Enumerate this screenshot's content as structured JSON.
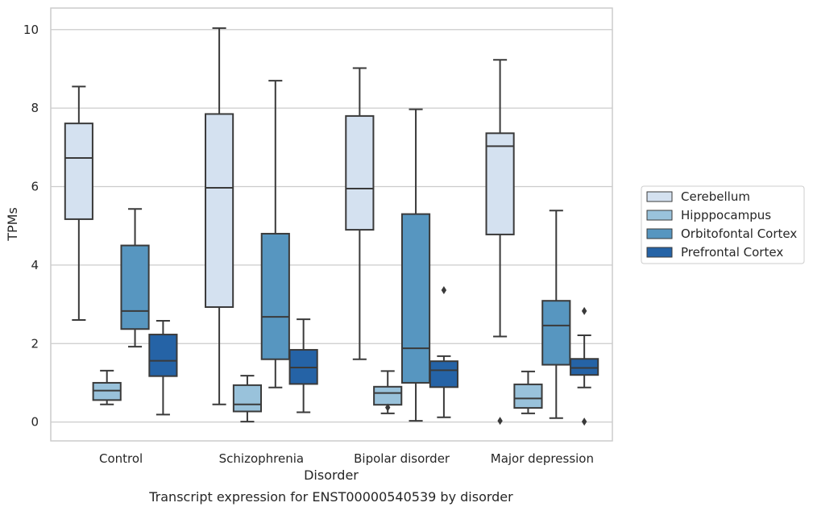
{
  "chart_data": {
    "type": "box",
    "caption": "Transcript expression for ENST00000540539 by disorder",
    "xlabel": "Disorder",
    "ylabel": "TPMs",
    "ylim": [
      -0.48,
      10.55
    ],
    "yticks": [
      0,
      2,
      4,
      6,
      8,
      10
    ],
    "grid": "horizontal",
    "legend_position": "right",
    "categories": [
      "Control",
      "Schizophrenia",
      "Bipolar disorder",
      "Major depression"
    ],
    "series": [
      {
        "name": "Cerebellum",
        "color": "#d4e1f0",
        "boxes": [
          {
            "whisker_low": 2.6,
            "q1": 5.17,
            "median": 6.73,
            "q3": 7.61,
            "whisker_high": 8.55,
            "outliers": []
          },
          {
            "whisker_low": 0.45,
            "q1": 2.93,
            "median": 5.97,
            "q3": 7.85,
            "whisker_high": 10.04,
            "outliers": []
          },
          {
            "whisker_low": 1.6,
            "q1": 4.9,
            "median": 5.95,
            "q3": 7.8,
            "whisker_high": 9.02,
            "outliers": []
          },
          {
            "whisker_low": 2.18,
            "q1": 4.78,
            "median": 7.03,
            "q3": 7.36,
            "whisker_high": 9.23,
            "outliers": [
              0.03
            ]
          }
        ]
      },
      {
        "name": "Hipppocampus",
        "color": "#99c2db",
        "boxes": [
          {
            "whisker_low": 0.45,
            "q1": 0.56,
            "median": 0.8,
            "q3": 1.0,
            "whisker_high": 1.31,
            "outliers": []
          },
          {
            "whisker_low": 0.01,
            "q1": 0.27,
            "median": 0.45,
            "q3": 0.94,
            "whisker_high": 1.18,
            "outliers": []
          },
          {
            "whisker_low": 0.22,
            "q1": 0.44,
            "median": 0.74,
            "q3": 0.9,
            "whisker_high": 1.3,
            "outliers": [
              0.37
            ]
          },
          {
            "whisker_low": 0.22,
            "q1": 0.36,
            "median": 0.6,
            "q3": 0.96,
            "whisker_high": 1.29,
            "outliers": []
          }
        ]
      },
      {
        "name": "Orbitofontal Cortex",
        "color": "#5796c0",
        "boxes": [
          {
            "whisker_low": 1.92,
            "q1": 2.37,
            "median": 2.83,
            "q3": 4.5,
            "whisker_high": 5.43,
            "outliers": []
          },
          {
            "whisker_low": 0.88,
            "q1": 1.6,
            "median": 2.68,
            "q3": 4.8,
            "whisker_high": 8.7,
            "outliers": []
          },
          {
            "whisker_low": 0.03,
            "q1": 1.0,
            "median": 1.88,
            "q3": 5.3,
            "whisker_high": 7.97,
            "outliers": []
          },
          {
            "whisker_low": 0.1,
            "q1": 1.46,
            "median": 2.46,
            "q3": 3.09,
            "whisker_high": 5.39,
            "outliers": []
          }
        ]
      },
      {
        "name": "Prefrontal Cortex",
        "color": "#2563a6",
        "boxes": [
          {
            "whisker_low": 0.19,
            "q1": 1.17,
            "median": 1.56,
            "q3": 2.23,
            "whisker_high": 2.58,
            "outliers": []
          },
          {
            "whisker_low": 0.25,
            "q1": 0.97,
            "median": 1.39,
            "q3": 1.84,
            "whisker_high": 2.62,
            "outliers": []
          },
          {
            "whisker_low": 0.12,
            "q1": 0.89,
            "median": 1.32,
            "q3": 1.55,
            "whisker_high": 1.68,
            "outliers": [
              3.36
            ]
          },
          {
            "whisker_low": 0.88,
            "q1": 1.2,
            "median": 1.38,
            "q3": 1.61,
            "whisker_high": 2.21,
            "outliers": [
              2.83,
              0.01
            ]
          }
        ]
      }
    ]
  }
}
